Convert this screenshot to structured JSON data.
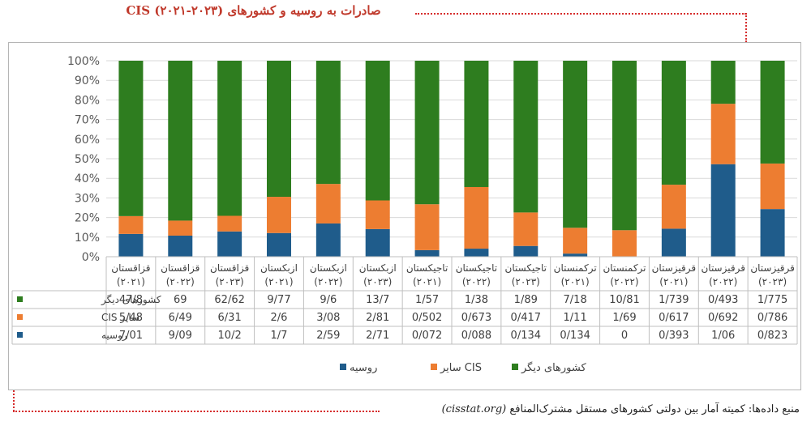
{
  "title": "صادرات به روسیه و کشورهای CIS (۲۰۲۱-۲۰۲۳)",
  "source_label": "منبع داده‌ها: کمیته آمار بین دولتی کشورهای مستقل مشترک‌المنافع",
  "source_site": "(cisstat.org)",
  "colors": {
    "accent_red": "#d62c2c",
    "other": "#2e7d1f",
    "cis": "#ed7d31",
    "russia": "#1f5c8b"
  },
  "chart_data": {
    "type": "bar",
    "stacked": "percent",
    "ylim": [
      0,
      100
    ],
    "yticks": [
      "0%",
      "10%",
      "20%",
      "30%",
      "40%",
      "50%",
      "60%",
      "70%",
      "80%",
      "90%",
      "100%"
    ],
    "grid": true,
    "legend_position": "bottom",
    "categories": [
      {
        "country": "قزاقستان",
        "year": "(۲۰۲۱)"
      },
      {
        "country": "قزاقستان",
        "year": "(۲۰۲۲)"
      },
      {
        "country": "قزاقستان",
        "year": "(۲۰۲۳)"
      },
      {
        "country": "ازبکستان",
        "year": "(۲۰۲۱)"
      },
      {
        "country": "ازبکستان",
        "year": "(۲۰۲۲)"
      },
      {
        "country": "ازبکستان",
        "year": "(۲۰۲۳)"
      },
      {
        "country": "تاجیکستان",
        "year": "(۲۰۲۱)"
      },
      {
        "country": "تاجیکستان",
        "year": "(۲۰۲۲)"
      },
      {
        "country": "تاجیکستان",
        "year": "(۲۰۲۳)"
      },
      {
        "country": "ترکمنستان",
        "year": "(۲۰۲۱)"
      },
      {
        "country": "ترکمنستان",
        "year": "(۲۰۲۲)"
      },
      {
        "country": "قرقیزستان",
        "year": "(۲۰۲۱)"
      },
      {
        "country": "قرقیزستان",
        "year": "(۲۰۲۲)"
      },
      {
        "country": "قرقیزستان",
        "year": "(۲۰۲۳)"
      }
    ],
    "series": [
      {
        "name": "کشورهای دیگر",
        "values": [
          47.8,
          69,
          62.62,
          9.77,
          9.6,
          13.7,
          1.57,
          1.38,
          1.89,
          7.18,
          10.81,
          1.739,
          0.493,
          1.775
        ],
        "labels": [
          "47/8",
          "69",
          "62/62",
          "9/77",
          "9/6",
          "13/7",
          "1/57",
          "1/38",
          "1/89",
          "7/18",
          "10/81",
          "1/739",
          "0/493",
          "1/775"
        ]
      },
      {
        "name": "سایر CIS",
        "values": [
          5.48,
          6.49,
          6.31,
          2.6,
          3.08,
          2.81,
          0.502,
          0.673,
          0.417,
          1.11,
          1.69,
          0.617,
          0.692,
          0.786
        ],
        "labels": [
          "5/48",
          "6/49",
          "6/31",
          "2/6",
          "3/08",
          "2/81",
          "0/502",
          "0/673",
          "0/417",
          "1/11",
          "1/69",
          "0/617",
          "0/692",
          "0/786"
        ]
      },
      {
        "name": "روسیه",
        "values": [
          7.01,
          9.09,
          10.2,
          1.7,
          2.59,
          2.71,
          0.072,
          0.088,
          0.134,
          0.134,
          0,
          0.393,
          1.06,
          0.823
        ],
        "labels": [
          "7/01",
          "9/09",
          "10/2",
          "1/7",
          "2/59",
          "2/71",
          "0/072",
          "0/088",
          "0/134",
          "0/134",
          "0",
          "0/393",
          "1/06",
          "0/823"
        ]
      }
    ]
  }
}
